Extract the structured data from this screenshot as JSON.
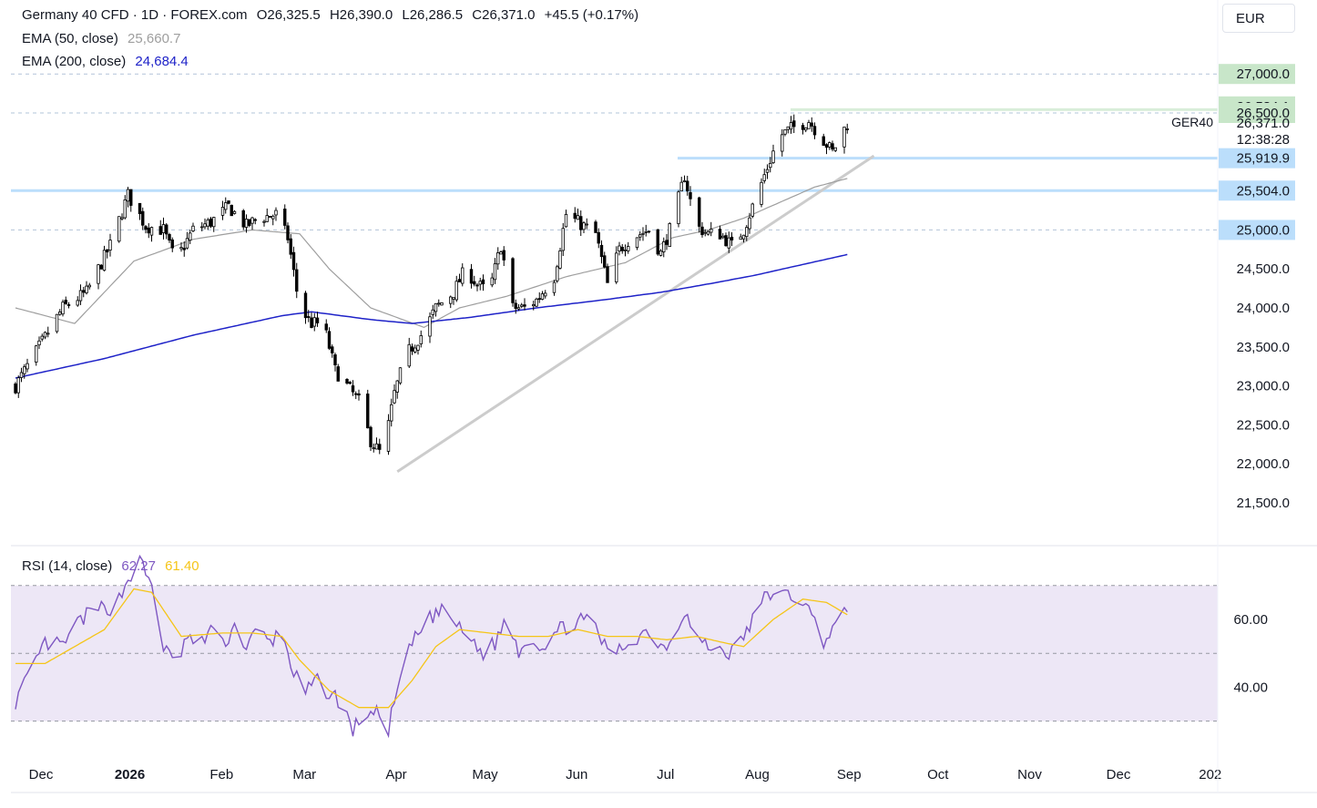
{
  "header": {
    "symbol_line": "Germany 40 CFD · 1D · FOREX.com",
    "open": "O26,325.5",
    "high": "H26,390.0",
    "low": "L26,286.5",
    "close": "C26,371.0",
    "change": "+45.5 (+0.17%)",
    "ema50_label": "EMA (50, close)",
    "ema50_value": "25,660.7",
    "ema200_label": "EMA (200, close)",
    "ema200_value": "24,684.4",
    "rsi_label": "RSI (14, close)",
    "rsi_value": "62.27",
    "rsi_ma_value": "61.40",
    "currency": "EUR",
    "ticker_tag": "GER40"
  },
  "colors": {
    "up_candle": "#ffffff",
    "down_candle": "#000000",
    "ema50": "#9e9e9e",
    "ema200": "#1e22c8",
    "rsi": "#7e57c2",
    "rsi_ma": "#f5c518",
    "rsi_band": "#ede7f6",
    "level_green": "#c8e6c9",
    "level_blue": "#bbdefb",
    "trendline": "#cccccc"
  },
  "chart_data": {
    "type": "candlestick",
    "y_range": [
      21000,
      27400
    ],
    "y_ticks": [
      "24,500.0",
      "24,000.0",
      "23,500.0",
      "23,000.0",
      "22,500.0",
      "22,000.0",
      "21,500.0"
    ],
    "price_labels": [
      {
        "text": "27,000.0",
        "value": 27000,
        "style": "green"
      },
      {
        "text": "26,584.1",
        "value": 26584.1,
        "style": "green"
      },
      {
        "text": "26,500.0",
        "value": 26500,
        "style": "green"
      },
      {
        "text": "26,371.0",
        "value": 26371,
        "style": "plain"
      },
      {
        "text": "12:38:28",
        "value": 26160,
        "style": "plain"
      },
      {
        "text": "25,919.9",
        "value": 25919.9,
        "style": "blue"
      },
      {
        "text": "25,504.0",
        "value": 25504,
        "style": "blue"
      },
      {
        "text": "25,000.0",
        "value": 25000,
        "style": "blue"
      }
    ],
    "x_labels": [
      "Dec",
      "2026",
      "Feb",
      "Mar",
      "Apr",
      "May",
      "Jun",
      "Jul",
      "Aug",
      "Sep",
      "Oct",
      "Nov",
      "Dec",
      "202"
    ],
    "x_label_days": [
      4,
      34,
      65,
      93,
      124,
      154,
      185,
      215,
      246,
      277,
      307,
      338,
      368,
      399
    ],
    "dashed_levels": [
      27000,
      26500,
      25000
    ],
    "support_levels": [
      25919.9,
      25504
    ],
    "trendline": {
      "from": {
        "day": 129,
        "price": 21900
      },
      "to": {
        "day": 290,
        "price": 25950
      }
    },
    "ohlc_anchors": [
      [
        0,
        23000
      ],
      [
        8,
        23500
      ],
      [
        16,
        24000
      ],
      [
        24,
        24200
      ],
      [
        32,
        24800
      ],
      [
        38,
        25450
      ],
      [
        44,
        25050
      ],
      [
        50,
        25000
      ],
      [
        54,
        24600
      ],
      [
        60,
        25000
      ],
      [
        66,
        25100
      ],
      [
        72,
        25300
      ],
      [
        78,
        25050
      ],
      [
        82,
        25150
      ],
      [
        88,
        25200
      ],
      [
        92,
        24900
      ],
      [
        96,
        24000
      ],
      [
        100,
        23800
      ],
      [
        104,
        23800
      ],
      [
        108,
        23200
      ],
      [
        112,
        23000
      ],
      [
        116,
        22800
      ],
      [
        120,
        22300
      ],
      [
        124,
        22100
      ],
      [
        128,
        22900
      ],
      [
        132,
        23400
      ],
      [
        138,
        23700
      ],
      [
        142,
        24000
      ],
      [
        148,
        24200
      ],
      [
        152,
        24500
      ],
      [
        156,
        24300
      ],
      [
        160,
        24200
      ],
      [
        164,
        24800
      ],
      [
        168,
        24000
      ],
      [
        172,
        24000
      ],
      [
        176,
        24100
      ],
      [
        182,
        24400
      ],
      [
        186,
        25200
      ],
      [
        190,
        25100
      ],
      [
        196,
        24950
      ],
      [
        200,
        24300
      ],
      [
        204,
        24750
      ],
      [
        208,
        24900
      ],
      [
        214,
        25000
      ],
      [
        218,
        24700
      ],
      [
        222,
        25100
      ],
      [
        226,
        25700
      ],
      [
        230,
        25050
      ],
      [
        234,
        24950
      ],
      [
        238,
        24950
      ],
      [
        242,
        24800
      ],
      [
        246,
        25000
      ],
      [
        250,
        25400
      ],
      [
        254,
        25800
      ],
      [
        258,
        26200
      ],
      [
        262,
        26300
      ],
      [
        268,
        26400
      ],
      [
        272,
        26200
      ],
      [
        276,
        26000
      ],
      [
        281,
        26371
      ]
    ],
    "ema50_anchors": [
      [
        0,
        24000
      ],
      [
        20,
        23800
      ],
      [
        40,
        24600
      ],
      [
        60,
        24880
      ],
      [
        80,
        25000
      ],
      [
        96,
        24950
      ],
      [
        106,
        24500
      ],
      [
        120,
        24000
      ],
      [
        138,
        23750
      ],
      [
        150,
        24000
      ],
      [
        166,
        24150
      ],
      [
        186,
        24400
      ],
      [
        206,
        24580
      ],
      [
        222,
        24900
      ],
      [
        234,
        25000
      ],
      [
        246,
        25150
      ],
      [
        258,
        25350
      ],
      [
        270,
        25550
      ],
      [
        281,
        25660
      ]
    ],
    "ema200_anchors": [
      [
        0,
        23100
      ],
      [
        30,
        23350
      ],
      [
        60,
        23650
      ],
      [
        90,
        23900
      ],
      [
        100,
        23950
      ],
      [
        120,
        23850
      ],
      [
        134,
        23800
      ],
      [
        154,
        23880
      ],
      [
        176,
        24000
      ],
      [
        198,
        24100
      ],
      [
        218,
        24200
      ],
      [
        236,
        24320
      ],
      [
        250,
        24420
      ],
      [
        264,
        24540
      ],
      [
        281,
        24684
      ]
    ],
    "rsi_range": [
      20,
      80
    ],
    "rsi_ticks": [
      "60.00",
      "40.00"
    ],
    "rsi_band": [
      30,
      70
    ],
    "rsi_anchors": [
      [
        0,
        36
      ],
      [
        4,
        42
      ],
      [
        10,
        53
      ],
      [
        16,
        52
      ],
      [
        22,
        60
      ],
      [
        28,
        63
      ],
      [
        34,
        64
      ],
      [
        38,
        72
      ],
      [
        42,
        77
      ],
      [
        46,
        70
      ],
      [
        50,
        52
      ],
      [
        54,
        46
      ],
      [
        58,
        55
      ],
      [
        62,
        51
      ],
      [
        66,
        58
      ],
      [
        70,
        52
      ],
      [
        74,
        58
      ],
      [
        78,
        52
      ],
      [
        82,
        57
      ],
      [
        86,
        53
      ],
      [
        90,
        57
      ],
      [
        94,
        44
      ],
      [
        98,
        38
      ],
      [
        102,
        42
      ],
      [
        106,
        38
      ],
      [
        110,
        36
      ],
      [
        114,
        27
      ],
      [
        118,
        33
      ],
      [
        122,
        32
      ],
      [
        126,
        28
      ],
      [
        130,
        42
      ],
      [
        134,
        53
      ],
      [
        138,
        58
      ],
      [
        142,
        62
      ],
      [
        146,
        62
      ],
      [
        150,
        57
      ],
      [
        154,
        54
      ],
      [
        158,
        50
      ],
      [
        162,
        53
      ],
      [
        166,
        61
      ],
      [
        170,
        51
      ],
      [
        174,
        55
      ],
      [
        178,
        52
      ],
      [
        182,
        56
      ],
      [
        186,
        58
      ],
      [
        190,
        60
      ],
      [
        196,
        58
      ],
      [
        200,
        50
      ],
      [
        204,
        51
      ],
      [
        208,
        54
      ],
      [
        214,
        57
      ],
      [
        218,
        52
      ],
      [
        222,
        54
      ],
      [
        226,
        63
      ],
      [
        230,
        54
      ],
      [
        234,
        52
      ],
      [
        238,
        51
      ],
      [
        242,
        50
      ],
      [
        246,
        55
      ],
      [
        250,
        61
      ],
      [
        254,
        68
      ],
      [
        258,
        67
      ],
      [
        262,
        67
      ],
      [
        266,
        66
      ],
      [
        270,
        59
      ],
      [
        272,
        53
      ],
      [
        276,
        57
      ],
      [
        281,
        62.27
      ]
    ],
    "rsi_ma_anchors": [
      [
        0,
        47
      ],
      [
        10,
        47
      ],
      [
        20,
        52
      ],
      [
        30,
        57
      ],
      [
        40,
        69
      ],
      [
        46,
        68
      ],
      [
        56,
        55
      ],
      [
        70,
        56
      ],
      [
        80,
        56
      ],
      [
        90,
        55
      ],
      [
        96,
        48
      ],
      [
        106,
        39
      ],
      [
        116,
        34
      ],
      [
        126,
        34
      ],
      [
        134,
        42
      ],
      [
        142,
        52
      ],
      [
        150,
        57
      ],
      [
        160,
        56
      ],
      [
        170,
        55
      ],
      [
        180,
        55
      ],
      [
        190,
        57
      ],
      [
        200,
        55
      ],
      [
        210,
        55
      ],
      [
        220,
        54
      ],
      [
        230,
        55
      ],
      [
        240,
        53
      ],
      [
        246,
        52
      ],
      [
        256,
        60
      ],
      [
        266,
        66
      ],
      [
        274,
        65
      ],
      [
        281,
        61.4
      ]
    ]
  }
}
